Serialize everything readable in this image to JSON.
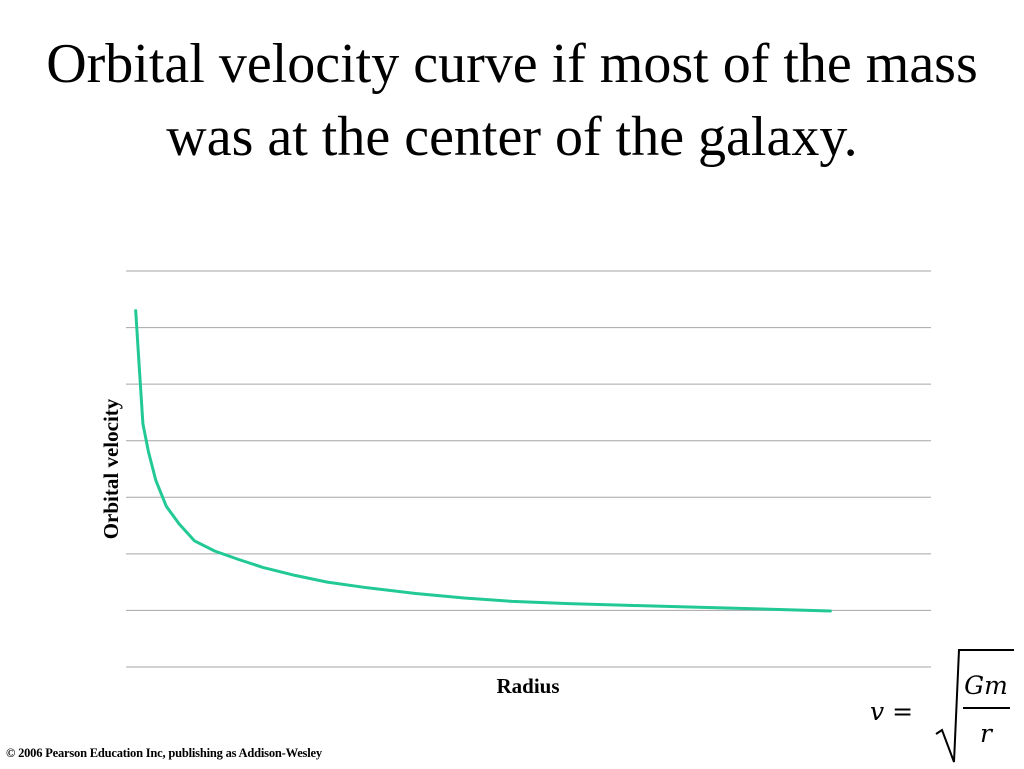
{
  "slide": {
    "title": "Orbital velocity curve if most of the mass was at the center of the galaxy.",
    "footer": "© 2006 Pearson Education Inc, publishing as Addison-Wesley"
  },
  "formula": {
    "lhs": "v =",
    "numerator": "Gm",
    "denominator": "r"
  },
  "chart_data": {
    "type": "line",
    "title": "",
    "xlabel": "Radius",
    "ylabel": "Orbital velocity",
    "xlim": [
      0,
      1
    ],
    "ylim": [
      0,
      7
    ],
    "grid": true,
    "legend": "none",
    "series": [
      {
        "color": "#22c995",
        "x": [
          0.012,
          0.016,
          0.021,
          0.028,
          0.037,
          0.05,
          0.066,
          0.085,
          0.11,
          0.14,
          0.17,
          0.21,
          0.25,
          0.3,
          0.36,
          0.42,
          0.48,
          0.55,
          0.62,
          0.7,
          0.78,
          0.875
        ],
        "y": [
          6.3,
          5.4,
          4.3,
          3.8,
          3.3,
          2.84,
          2.53,
          2.23,
          2.05,
          1.9,
          1.76,
          1.62,
          1.5,
          1.4,
          1.3,
          1.22,
          1.16,
          1.12,
          1.09,
          1.06,
          1.03,
          0.99
        ]
      }
    ]
  }
}
